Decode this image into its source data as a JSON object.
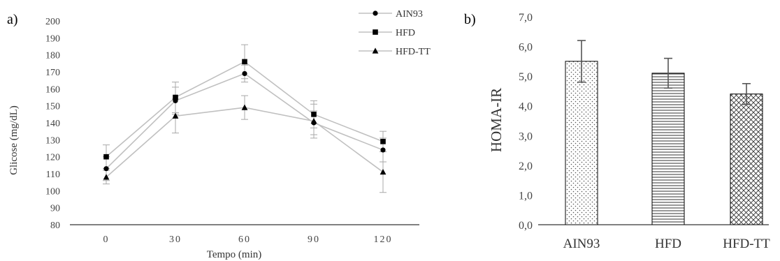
{
  "panel_labels": [
    "a)",
    "b)"
  ],
  "chart_data": [
    {
      "type": "line",
      "panel": "a)",
      "xlabel": "Tempo (min)",
      "ylabel": "Glicose (mg/dL)",
      "x": [
        0,
        30,
        60,
        90,
        120
      ],
      "x_tick_labels": [
        "0",
        "30",
        "60",
        "90",
        "120"
      ],
      "ylim": [
        80,
        200
      ],
      "y_ticks": [
        80,
        90,
        100,
        110,
        120,
        130,
        140,
        150,
        160,
        170,
        180,
        190,
        200
      ],
      "grid": false,
      "legend_position": "top-right",
      "line_color": "#c0c0c0",
      "marker_color": "#000000",
      "series": [
        {
          "name": "AIN93",
          "marker": "circle",
          "values": [
            113,
            153,
            169,
            140,
            124
          ],
          "error": [
            7,
            8,
            5,
            7,
            7
          ]
        },
        {
          "name": "HFD",
          "marker": "square",
          "values": [
            120,
            155,
            176,
            145,
            129
          ],
          "error": [
            7,
            9,
            10,
            8,
            6
          ]
        },
        {
          "name": "HFD-TT",
          "marker": "triangle",
          "values": [
            108,
            144,
            149,
            141,
            111
          ],
          "error": [
            4,
            10,
            7,
            10,
            12
          ]
        }
      ]
    },
    {
      "type": "bar",
      "panel": "b)",
      "xlabel": "",
      "ylabel": "HOMA-IR",
      "categories": [
        "AIN93",
        "HFD",
        "HFD-TT"
      ],
      "values": [
        5.5,
        5.1,
        4.4
      ],
      "error": [
        0.7,
        0.5,
        0.35
      ],
      "patterns": [
        "dots",
        "horizontal-lines",
        "crosshatch"
      ],
      "ylim": [
        0,
        7
      ],
      "y_ticks": [
        0,
        1,
        2,
        3,
        4,
        5,
        6,
        7
      ],
      "y_tick_labels": [
        "0,0",
        "1,0",
        "2,0",
        "3,0",
        "4,0",
        "5,0",
        "6,0",
        "7,0"
      ],
      "grid": false
    }
  ]
}
